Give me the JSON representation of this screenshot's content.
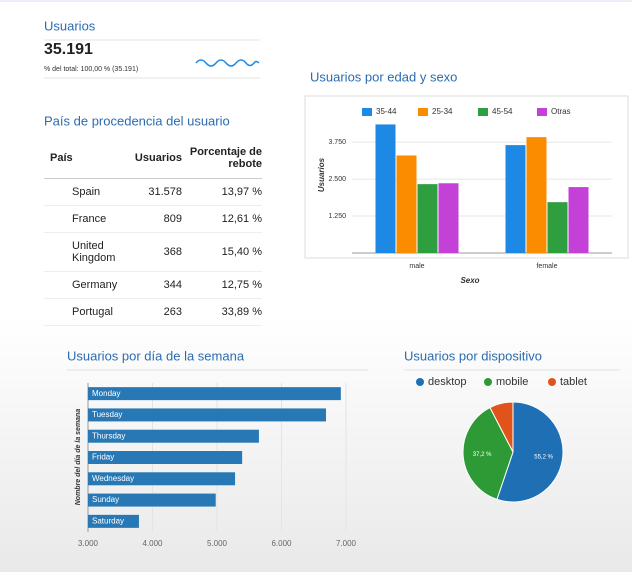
{
  "scorecard": {
    "title": "Usuarios",
    "value": "35.191",
    "subtitle": "% del total: 100,00 % (35.191)"
  },
  "table": {
    "title": "País de procedencia del usuario",
    "columns": [
      "País",
      "Usuarios",
      "Porcentaje de rebote"
    ],
    "rows": [
      [
        "Spain",
        "31.578",
        "13,97 %"
      ],
      [
        "France",
        "809",
        "12,61 %"
      ],
      [
        "United Kingdom",
        "368",
        "15,40 %"
      ],
      [
        "Germany",
        "344",
        "12,75 %"
      ],
      [
        "Portugal",
        "263",
        "33,89 %"
      ]
    ]
  },
  "chart_data": [
    {
      "type": "bar",
      "title": "Usuarios por edad y sexo",
      "categories": [
        "male",
        "female"
      ],
      "series": [
        {
          "name": "35-44",
          "color": "#1e88e5",
          "values": [
            4350,
            3650
          ]
        },
        {
          "name": "25-34",
          "color": "#fb8c00",
          "values": [
            3300,
            3920
          ]
        },
        {
          "name": "45-54",
          "color": "#2e9e3e",
          "values": [
            2330,
            1720
          ]
        },
        {
          "name": "Otras",
          "color": "#c341d6",
          "values": [
            2360,
            2230
          ]
        }
      ],
      "ylim": [
        0,
        4500
      ],
      "yticks": [
        {
          "value": 1250,
          "label": "1.250"
        },
        {
          "value": 2500,
          "label": "2.500"
        },
        {
          "value": 3750,
          "label": "3.750"
        }
      ],
      "grid": true,
      "xlabel": "Sexo",
      "ylabel": "Usuarios",
      "legend": "top"
    },
    {
      "type": "hbar",
      "title": "Usuarios por día de la semana",
      "categories": [
        "Monday",
        "Tuesday",
        "Thursday",
        "Friday",
        "Wednesday",
        "Sunday",
        "Saturday"
      ],
      "values": [
        6920,
        6690,
        5650,
        5390,
        5280,
        4980,
        3790
      ],
      "color": "#2878b5",
      "xlim": [
        3000,
        7200
      ],
      "xticks": [
        {
          "value": 3000,
          "label": "3.000"
        },
        {
          "value": 4000,
          "label": "4.000"
        },
        {
          "value": 5000,
          "label": "5.000"
        },
        {
          "value": 6000,
          "label": "6.000"
        },
        {
          "value": 7000,
          "label": "7.000"
        }
      ],
      "grid": true,
      "ylabel": "Nombre del día de la semana"
    },
    {
      "type": "pie",
      "title": "Usuarios por dispositivo",
      "categories": [
        "desktop",
        "mobile",
        "tablet"
      ],
      "values": [
        55.2,
        37.2,
        7.6
      ],
      "value_labels": [
        "55,2 %",
        "37,2 %",
        null
      ],
      "colors": [
        "#1f6fb5",
        "#2e9a36",
        "#e0541c"
      ],
      "legend": "top"
    }
  ]
}
